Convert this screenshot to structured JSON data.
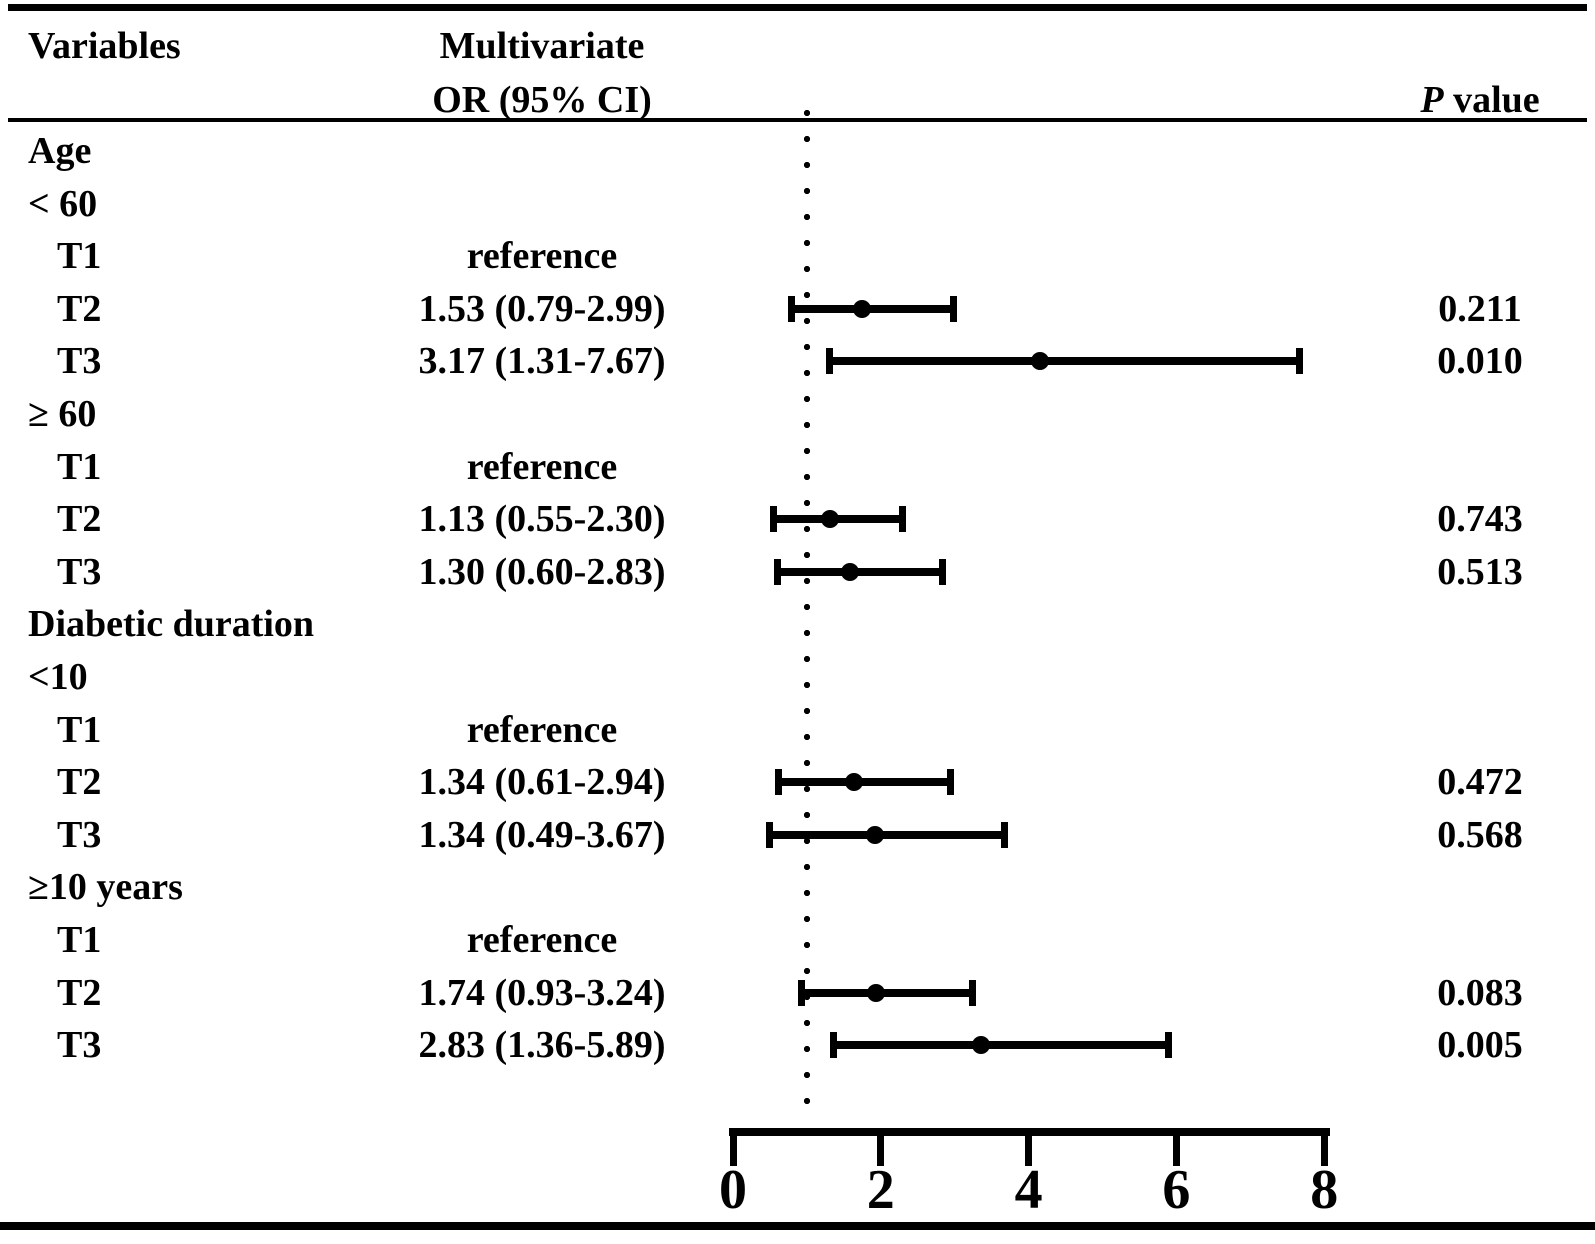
{
  "colors": {
    "foreground": "#000000",
    "background": "#ffffff"
  },
  "table": {
    "header": {
      "variables": "Variables",
      "multivariate": "Multivariate",
      "or_ci": "OR (95% CI)",
      "p_italic": "P",
      "p_rest": " value"
    }
  },
  "chart_data": {
    "type": "scatter",
    "variant": "forest-plot",
    "title": "",
    "xlabel": "",
    "ylabel": "",
    "x_ticks": [
      0,
      2,
      4,
      6,
      8
    ],
    "xlim": [
      0,
      8.3
    ],
    "reference_line_x": 1,
    "reference_line_style": "dotted",
    "grid": false,
    "legend": "none",
    "columns": [
      "Variables",
      "Multivariate OR (95% CI)",
      "P value"
    ],
    "rows": [
      {
        "label": "Age",
        "indent": 0,
        "or_text": "",
        "p": ""
      },
      {
        "label": "< 60",
        "indent": 0,
        "or_text": "",
        "p": ""
      },
      {
        "label": "T1",
        "indent": 1,
        "or_text": "reference",
        "p": ""
      },
      {
        "label": "T2",
        "indent": 1,
        "or_text": "1.53 (0.79-2.99)",
        "p": "0.211",
        "or": 1.53,
        "ci_low": 0.79,
        "ci_high": 2.99
      },
      {
        "label": "T3",
        "indent": 1,
        "or_text": "3.17 (1.31-7.67)",
        "p": "0.010",
        "or": 3.17,
        "ci_low": 1.31,
        "ci_high": 7.67
      },
      {
        "label": "≥ 60",
        "indent": 0,
        "or_text": "",
        "p": ""
      },
      {
        "label": "T1",
        "indent": 1,
        "or_text": "reference",
        "p": ""
      },
      {
        "label": "T2",
        "indent": 1,
        "or_text": "1.13 (0.55-2.30)",
        "p": "0.743",
        "or": 1.13,
        "ci_low": 0.55,
        "ci_high": 2.3
      },
      {
        "label": "T3",
        "indent": 1,
        "or_text": "1.30 (0.60-2.83)",
        "p": "0.513",
        "or": 1.3,
        "ci_low": 0.6,
        "ci_high": 2.83
      },
      {
        "label": "Diabetic duration",
        "indent": 0,
        "or_text": "",
        "p": ""
      },
      {
        "label": "<10",
        "indent": 0,
        "or_text": "",
        "p": ""
      },
      {
        "label": "T1",
        "indent": 1,
        "or_text": "reference",
        "p": ""
      },
      {
        "label": "T2",
        "indent": 1,
        "or_text": "1.34 (0.61-2.94)",
        "p": "0.472",
        "or": 1.34,
        "ci_low": 0.61,
        "ci_high": 2.94
      },
      {
        "label": "T3",
        "indent": 1,
        "or_text": "1.34 (0.49-3.67)",
        "p": "0.568",
        "or": 1.34,
        "ci_low": 0.49,
        "ci_high": 3.67
      },
      {
        "label": "≥10 years",
        "indent": 0,
        "or_text": "",
        "p": ""
      },
      {
        "label": "T1",
        "indent": 1,
        "or_text": "reference",
        "p": ""
      },
      {
        "label": "T2",
        "indent": 1,
        "or_text": "1.74 (0.93-3.24)",
        "p": "0.083",
        "or": 1.74,
        "ci_low": 0.93,
        "ci_high": 3.24
      },
      {
        "label": "T3",
        "indent": 1,
        "or_text": "2.83 (1.36-5.89)",
        "p": "0.005",
        "or": 2.83,
        "ci_low": 1.36,
        "ci_high": 5.89
      }
    ]
  }
}
